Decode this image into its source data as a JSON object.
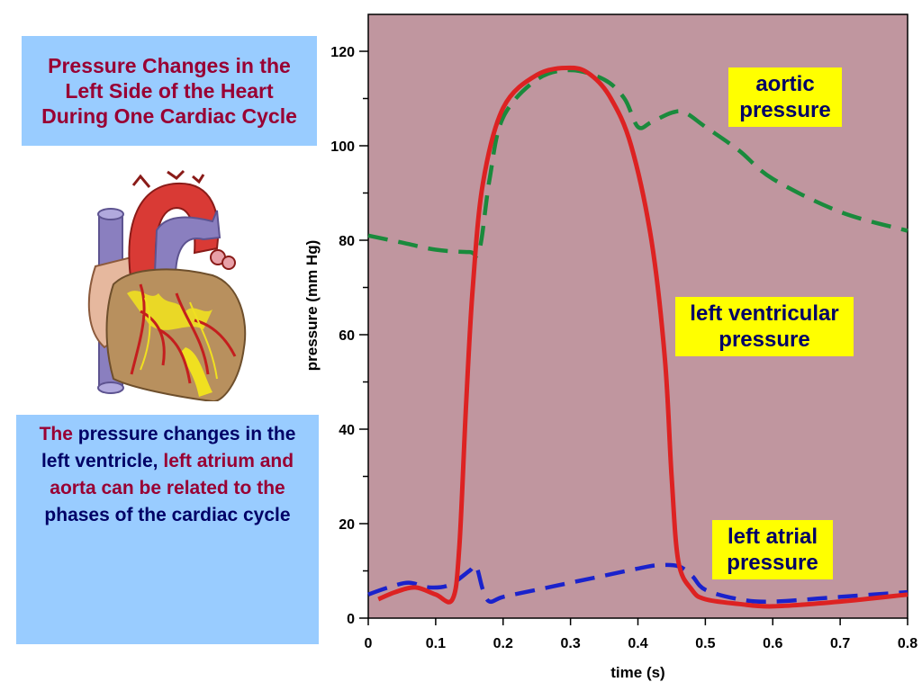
{
  "title": "Pressure Changes in the Left Side of the Heart During One Cardiac Cycle",
  "description": {
    "part1": "The",
    "part2": "pressure changes in the left ventricle,",
    "part3": "left atrium and aorta can be related to the",
    "part4": "phases of the cardiac cycle"
  },
  "colors": {
    "plot_background": "#c0969f",
    "aortic": "#1a8a3c",
    "ventricular": "#dd2222",
    "atrial": "#1a22cc",
    "label_box": "#ffff00",
    "text_box": "#99ccff"
  },
  "chart_data": {
    "type": "line",
    "xlabel": "time (s)",
    "ylabel": "pressure (mm Hg)",
    "xlim": [
      0,
      0.8
    ],
    "ylim": [
      0,
      125
    ],
    "x_ticks": [
      0,
      0.1,
      0.2,
      0.3,
      0.4,
      0.5,
      0.6,
      0.7,
      0.8
    ],
    "x_tick_labels": [
      "0",
      "0.1",
      "0.2",
      "0.3",
      "0.4",
      "0.5",
      "0.6",
      "0.7",
      "0.8"
    ],
    "y_ticks": [
      0,
      20,
      40,
      60,
      80,
      100,
      120
    ],
    "y_tick_labels": [
      "0",
      "20",
      "40",
      "60",
      "80",
      "100",
      "120"
    ],
    "y_minor_ticks": [
      10,
      30,
      50,
      70,
      90,
      110
    ],
    "grid": false,
    "series": [
      {
        "name": "aortic pressure",
        "color": "#1a8a3c",
        "style": "dashed",
        "x": [
          0,
          0.05,
          0.1,
          0.15,
          0.165,
          0.18,
          0.2,
          0.25,
          0.3,
          0.35,
          0.38,
          0.4,
          0.42,
          0.45,
          0.47,
          0.5,
          0.55,
          0.6,
          0.7,
          0.8
        ],
        "y": [
          81,
          79.5,
          78,
          77.5,
          78,
          93,
          106,
          114,
          116,
          114,
          110,
          104,
          105,
          107,
          107,
          104,
          99,
          93,
          86,
          82
        ]
      },
      {
        "name": "left ventricular pressure",
        "color": "#dd2222",
        "style": "solid",
        "x": [
          0.015,
          0.04,
          0.07,
          0.1,
          0.125,
          0.135,
          0.145,
          0.155,
          0.17,
          0.2,
          0.25,
          0.3,
          0.33,
          0.36,
          0.39,
          0.42,
          0.44,
          0.45,
          0.46,
          0.48,
          0.5,
          0.55,
          0.6,
          0.7,
          0.8
        ],
        "y": [
          4,
          5.5,
          6.5,
          5,
          4,
          15,
          45,
          70,
          92,
          108,
          115,
          116.5,
          115,
          110,
          100,
          80,
          55,
          30,
          12,
          6,
          4,
          3,
          2.5,
          3.5,
          5
        ]
      },
      {
        "name": "left atrial pressure",
        "color": "#1a22cc",
        "style": "dashed",
        "x": [
          0,
          0.03,
          0.06,
          0.09,
          0.12,
          0.15,
          0.16,
          0.17,
          0.18,
          0.2,
          0.25,
          0.3,
          0.35,
          0.4,
          0.43,
          0.46,
          0.48,
          0.5,
          0.55,
          0.6,
          0.7,
          0.8
        ],
        "y": [
          5,
          6.5,
          7.5,
          6.5,
          7,
          10,
          11,
          6,
          3.5,
          4.5,
          6,
          7.5,
          9,
          10.5,
          11.2,
          11,
          9,
          6,
          4,
          3.5,
          4.5,
          5.5
        ]
      }
    ],
    "annotations": [
      {
        "text_line1": "aortic",
        "text_line2": "pressure"
      },
      {
        "text_line1": "left ventricular",
        "text_line2": "pressure"
      },
      {
        "text_line1": "left atrial",
        "text_line2": "pressure"
      }
    ]
  }
}
